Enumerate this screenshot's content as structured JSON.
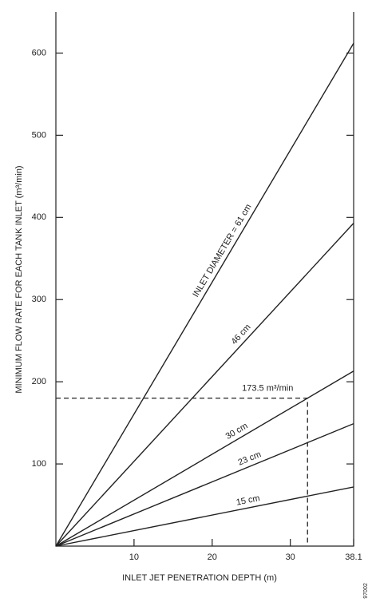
{
  "chart_data": {
    "type": "line",
    "x_label": "INLET JET PENETRATION DEPTH (m)",
    "y_label": "MINIMUM FLOW RATE FOR EACH TANK INLET (m³/min)",
    "x": [
      0,
      38.1
    ],
    "series": [
      {
        "name": "INLET DIAMETER = 61 cm",
        "color": "#222222",
        "values": [
          0,
          612
        ]
      },
      {
        "name": "46 cm",
        "color": "#222222",
        "values": [
          0,
          393
        ]
      },
      {
        "name": "30 cm",
        "color": "#222222",
        "values": [
          0,
          213
        ]
      },
      {
        "name": "23 cm",
        "color": "#222222",
        "values": [
          0,
          149
        ]
      },
      {
        "name": "15 cm",
        "color": "#222222",
        "values": [
          0,
          72
        ]
      }
    ],
    "annotation": {
      "text": "173.5 m³/min",
      "x": 32.2,
      "y": 180
    },
    "xlim": [
      0,
      38.1
    ],
    "xticks": [
      10,
      20,
      30,
      38.1
    ],
    "ylim": [
      0,
      650
    ],
    "yticks": [
      100,
      200,
      300,
      400,
      500,
      600
    ],
    "figure_id": "97002"
  }
}
